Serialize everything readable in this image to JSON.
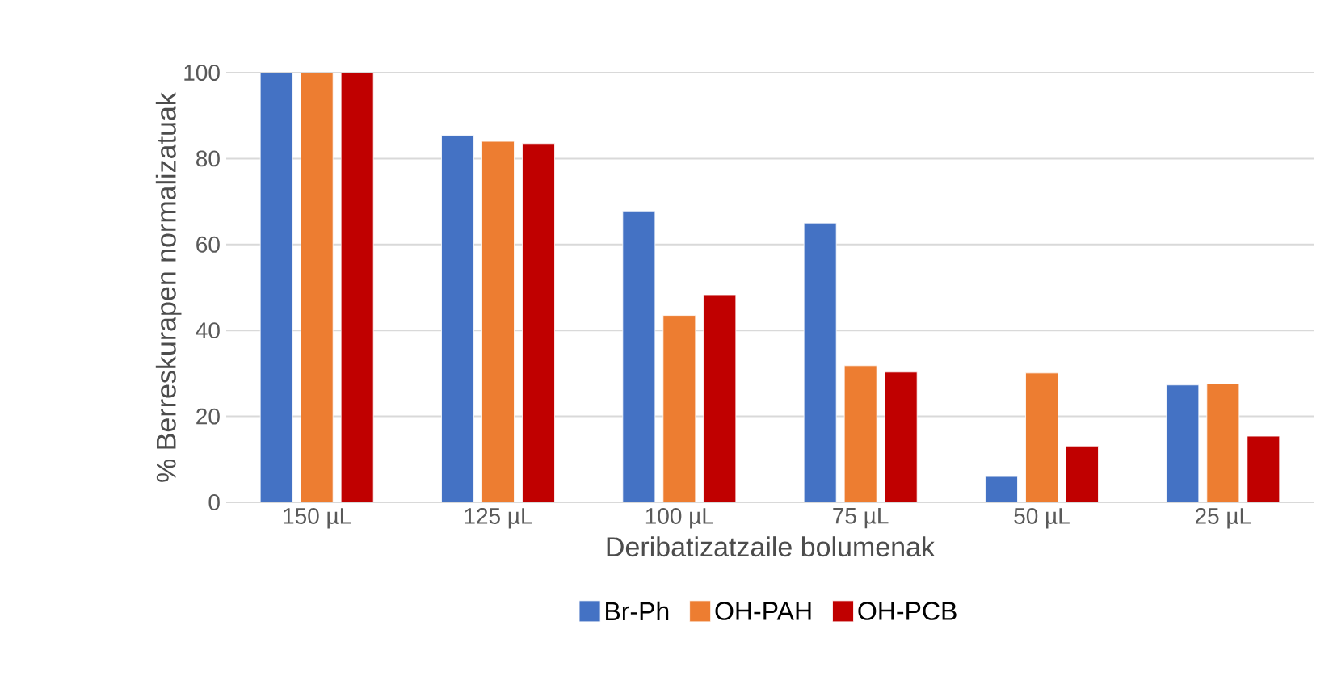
{
  "chart_data": {
    "type": "bar",
    "xlabel": "Deribatizatzaile bolumenak",
    "ylabel": "% Berreskurapen normalizatuak",
    "categories": [
      "150 µL",
      "125 µL",
      "100 µL",
      "75 µL",
      "50 µL",
      "25 µL"
    ],
    "series": [
      {
        "name": "Br-Ph",
        "color": "#4472c4",
        "values": [
          100,
          85.4,
          67.8,
          65,
          6,
          27.3
        ]
      },
      {
        "name": "OH-PAH",
        "color": "#ed7d31",
        "values": [
          100,
          84,
          43.5,
          31.8,
          30.1,
          27.6
        ]
      },
      {
        "name": "OH-PCB",
        "color": "#c00000",
        "values": [
          100,
          83.5,
          48.3,
          30.3,
          13.1,
          15.4
        ]
      }
    ],
    "ylim": [
      0,
      100
    ],
    "yticks": [
      0,
      20,
      40,
      60,
      80,
      100
    ],
    "grid": "y",
    "legend": "bottom"
  }
}
